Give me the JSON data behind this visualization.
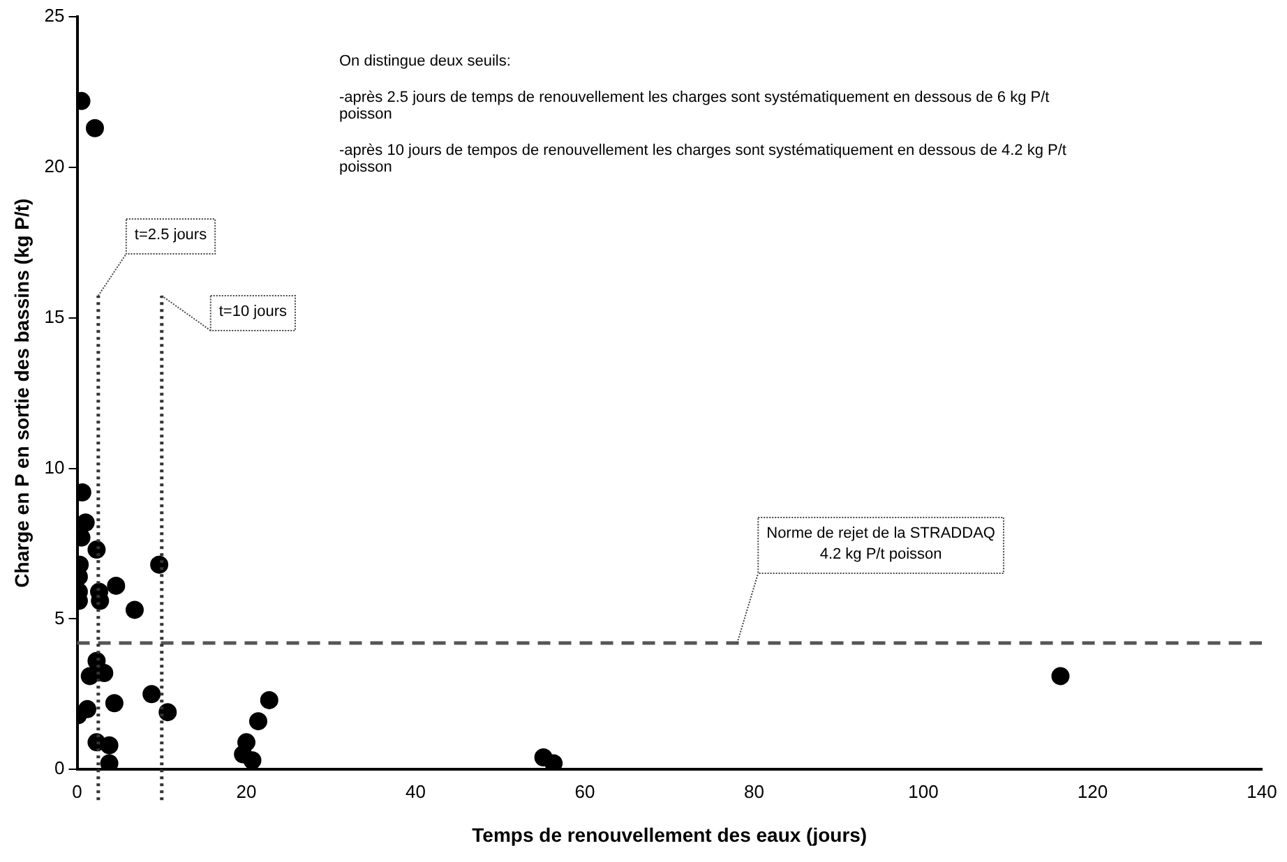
{
  "chart_data": {
    "type": "scatter",
    "xlabel": "Temps de renouvellement des eaux (jours)",
    "ylabel": "Charge en P en sortie des bassins (kg P/t)",
    "x": [
      0.5,
      2.1,
      0.6,
      1.0,
      0.5,
      2.3,
      0.3,
      0.2,
      0.2,
      0.2,
      2.6,
      2.7,
      4.6,
      6.8,
      9.7,
      2.3,
      1.5,
      3.2,
      0.1,
      1.2,
      4.4,
      8.8,
      10.7,
      2.3,
      3.8,
      3.8,
      20.0,
      19.6,
      20.7,
      21.4,
      22.7,
      55.1,
      56.3,
      116.2
    ],
    "values": [
      22.2,
      21.3,
      9.2,
      8.2,
      7.7,
      7.3,
      6.8,
      6.4,
      5.9,
      5.6,
      5.9,
      5.6,
      6.1,
      5.3,
      6.8,
      3.6,
      3.1,
      3.2,
      1.8,
      2.0,
      2.2,
      2.5,
      1.9,
      0.9,
      0.8,
      0.2,
      0.9,
      0.5,
      0.3,
      1.6,
      2.3,
      0.4,
      0.2,
      3.1
    ],
    "color": "#000000",
    "marker": "circle",
    "xlim": [
      0,
      140
    ],
    "xticks": [
      0,
      20,
      40,
      60,
      80,
      100,
      120,
      140
    ],
    "ylim": [
      0,
      25
    ],
    "yticks": [
      0,
      5,
      10,
      15,
      20,
      25
    ],
    "grid": false,
    "legend": false,
    "ref_lines": [
      {
        "axis": "y",
        "value": 4.2,
        "label": "Norme de rejet de la STRADDAQ\n4.2 kg P/t poisson",
        "line_style": "dashed",
        "color": "#555555"
      },
      {
        "axis": "x",
        "value": 2.5,
        "label": "t=2.5 jours",
        "line_style": "dotted",
        "color": "#333333"
      },
      {
        "axis": "x",
        "value": 10,
        "label": "t=10 jours",
        "line_style": "dotted",
        "color": "#333333"
      }
    ],
    "annotations": [
      "On distingue deux seuils:",
      "-après 2.5 jours de temps de renouvellement les charges sont systématiquement en dessous de 6 kg P/t poisson",
      "-après 10 jours de tempos de renouvellement les charges sont systématiquement en dessous de 4.2 kg P/t poisson"
    ]
  }
}
